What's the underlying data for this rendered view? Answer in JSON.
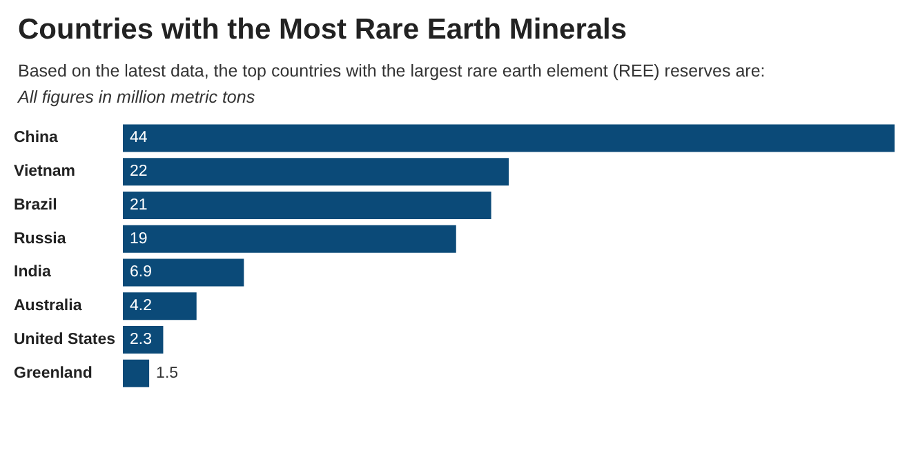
{
  "chart_data": {
    "type": "bar",
    "orientation": "horizontal",
    "title": "Countries with the Most Rare Earth Minerals",
    "subtitle": "Based on the latest data, the top countries with the largest rare earth element (REE) reserves are:",
    "annotations": [
      "All figures in million metric tons"
    ],
    "categories": [
      "China",
      "Vietnam",
      "Brazil",
      "Russia",
      "India",
      "Australia",
      "United States",
      "Greenland"
    ],
    "values": [
      44,
      22,
      21,
      19,
      6.9,
      4.2,
      2.3,
      1.5
    ],
    "color": "#0b4a78",
    "data_labels": true
  }
}
